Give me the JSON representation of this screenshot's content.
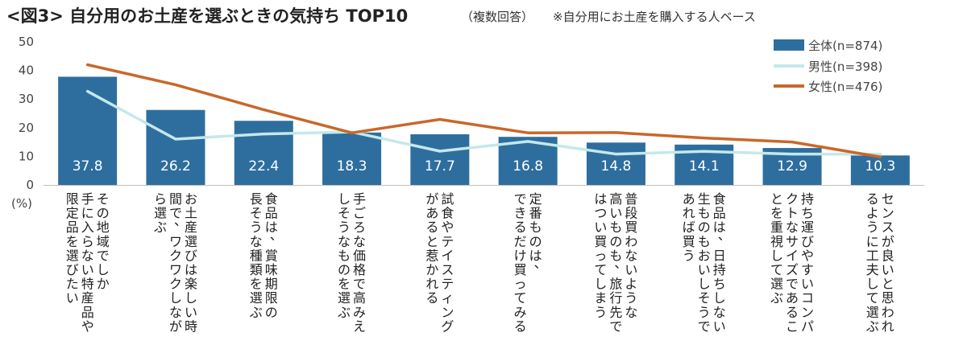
{
  "chart_data": {
    "type": "bar",
    "title": "<図3> 自分用のお土産を選ぶときの気持ち TOP10",
    "subtitle_note": "（複数回答）",
    "subtitle": "※自分用にお土産を購入する人ベース",
    "ylim": [
      0,
      50
    ],
    "yticks": [
      0,
      10,
      20,
      30,
      40,
      50
    ],
    "yunit": "(%)",
    "categories": [
      "その地域でしか手に入らない特産品や限定品を選びたい",
      "お土産選びは楽しい時間で、ワクワクしながら選ぶ",
      "食品は、賞味期限の長そうな種類を選ぶ",
      "手ごろな価格で高みえしそうなものを選ぶ",
      "試食やテイスティングがあると惹かれる",
      "定番ものは、できるだけ買ってみる",
      "普段買わないような高いものも、旅行先ではつい買ってしまう",
      "食品は、日持ちしない生ものもおいしそうであれば買う",
      "持ち運びやすいコンパクトなサイズであることを重視して選ぶ",
      "センスが良いと思われるように工夫して選ぶ"
    ],
    "category_lines": [
      [
        "その地域でしか",
        "手に入らない特産品や",
        "限定品を選びたい"
      ],
      [
        "お土産選びは楽しい時",
        "間で、ワクワクしなが",
        "ら選ぶ"
      ],
      [
        "食品は、賞味期限の",
        "長そうな種類を選ぶ"
      ],
      [
        "手ごろな価格で高みえ",
        "しそうなものを選ぶ"
      ],
      [
        "試食やテイスティング",
        "があると惹かれる"
      ],
      [
        "定番ものは、",
        "できるだけ買ってみる"
      ],
      [
        "普段買わないような",
        "高いものも、旅行先で",
        "はつい買ってしまう"
      ],
      [
        "食品は、日持ちしない",
        "生ものもおいしそうで",
        "あれば買う"
      ],
      [
        "持ち運びやすいコンパ",
        "クトなサイズであるこ",
        "とを重視して選ぶ"
      ],
      [
        "センスが良いと思われ",
        "るように工夫して選ぶ"
      ]
    ],
    "series": [
      {
        "name": "全体(n=874)",
        "type": "bar",
        "color": "#2e6e9e",
        "values": [
          37.8,
          26.2,
          22.4,
          18.3,
          17.7,
          16.8,
          14.8,
          14.1,
          12.9,
          10.3
        ],
        "value_labels": [
          "37.8",
          "26.2",
          "22.4",
          "18.3",
          "17.7",
          "16.8",
          "14.8",
          "14.1",
          "12.9",
          "10.3"
        ]
      },
      {
        "name": "男性(n=398)",
        "type": "line",
        "color": "#c5e8ea",
        "values": [
          32.7,
          16.0,
          17.8,
          18.5,
          11.8,
          15.2,
          10.8,
          11.7,
          10.8,
          10.8
        ]
      },
      {
        "name": "女性(n=476)",
        "type": "line",
        "color": "#c8682a",
        "values": [
          42.0,
          35.0,
          26.3,
          18.2,
          22.9,
          18.2,
          18.3,
          16.4,
          15.0,
          9.8
        ]
      }
    ]
  }
}
